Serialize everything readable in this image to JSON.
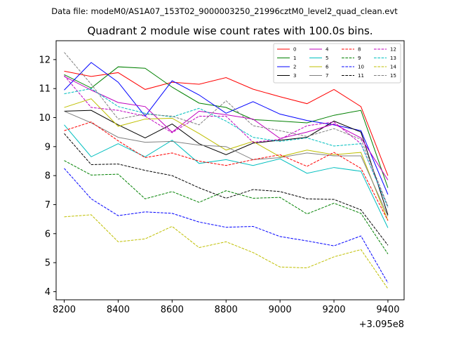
{
  "chart_data": {
    "type": "line",
    "suptitle": "Data file: modeM0/AS1A07_153T02_9000003250_21996cztM0_level2_quad_clean.evt",
    "title": "Quadrant 2 module wise count rates with 100.0s bins.",
    "xlabel": "",
    "ylabel": "",
    "x_offset_label": "+3.095e8",
    "xlim": [
      8170,
      9460
    ],
    "ylim": [
      3.72,
      12.65
    ],
    "xticks": [
      8200,
      8400,
      8600,
      8800,
      9000,
      9200,
      9400
    ],
    "yticks": [
      4,
      5,
      6,
      7,
      8,
      9,
      10,
      11,
      12
    ],
    "grid": false,
    "legend_position": "top-right",
    "x": [
      8200,
      8300,
      8400,
      8500,
      8600,
      8700,
      8800,
      8900,
      9000,
      9100,
      9200,
      9300,
      9400
    ],
    "series": [
      {
        "name": "0",
        "color": "#ff0000",
        "dash": false,
        "values": [
          11.6,
          11.42,
          11.55,
          10.97,
          11.22,
          11.15,
          11.38,
          10.98,
          10.72,
          10.48,
          10.97,
          10.38,
          8.0
        ]
      },
      {
        "name": "1",
        "color": "#008000",
        "dash": false,
        "values": [
          11.48,
          11.02,
          11.75,
          11.7,
          11.05,
          10.5,
          10.35,
          9.93,
          9.88,
          9.82,
          10.08,
          10.25,
          7.58
        ]
      },
      {
        "name": "2",
        "color": "#0000ff",
        "dash": false,
        "values": [
          10.95,
          11.9,
          11.22,
          10.05,
          11.27,
          10.78,
          10.15,
          10.55,
          10.12,
          9.9,
          9.75,
          9.55,
          7.35
        ]
      },
      {
        "name": "3",
        "color": "#000000",
        "dash": false,
        "values": [
          10.22,
          10.25,
          9.75,
          9.3,
          9.78,
          9.1,
          8.72,
          9.12,
          9.22,
          9.32,
          9.88,
          9.5,
          6.65
        ]
      },
      {
        "name": "4",
        "color": "#bf00bf",
        "dash": false,
        "values": [
          11.42,
          10.95,
          10.52,
          10.38,
          9.5,
          10.22,
          10.1,
          9.95,
          9.28,
          9.5,
          9.78,
          9.3,
          7.85
        ]
      },
      {
        "name": "5",
        "color": "#00bfbf",
        "dash": false,
        "values": [
          9.75,
          8.65,
          9.1,
          8.65,
          9.22,
          8.42,
          8.55,
          8.35,
          8.58,
          8.08,
          8.28,
          8.15,
          6.2
        ]
      },
      {
        "name": "6",
        "color": "#bfbf00",
        "dash": false,
        "values": [
          10.35,
          10.65,
          9.7,
          9.95,
          9.98,
          9.45,
          8.88,
          9.18,
          8.65,
          8.88,
          8.72,
          8.8,
          6.45
        ]
      },
      {
        "name": "7",
        "color": "#808080",
        "dash": false,
        "values": [
          10.22,
          9.82,
          9.32,
          9.15,
          9.18,
          9.05,
          9.0,
          8.55,
          8.62,
          8.78,
          8.68,
          8.68,
          6.6
        ]
      },
      {
        "name": "8",
        "color": "#ff0000",
        "dash": true,
        "values": [
          9.55,
          9.85,
          9.2,
          8.62,
          8.78,
          8.5,
          8.35,
          8.55,
          8.72,
          8.32,
          8.8,
          8.25,
          6.45
        ]
      },
      {
        "name": "9",
        "color": "#008000",
        "dash": true,
        "values": [
          8.52,
          8.02,
          8.05,
          7.2,
          7.45,
          7.08,
          7.48,
          7.22,
          7.25,
          6.68,
          7.05,
          6.7,
          5.3
        ]
      },
      {
        "name": "10",
        "color": "#0000ff",
        "dash": true,
        "values": [
          8.25,
          7.2,
          6.62,
          6.75,
          6.7,
          6.4,
          6.22,
          6.25,
          5.9,
          5.75,
          5.58,
          5.92,
          4.3
        ]
      },
      {
        "name": "11",
        "color": "#000000",
        "dash": true,
        "values": [
          9.45,
          8.38,
          8.4,
          8.18,
          8.0,
          7.58,
          7.22,
          7.52,
          7.45,
          7.2,
          7.18,
          6.82,
          5.6
        ]
      },
      {
        "name": "12",
        "color": "#bf00bf",
        "dash": true,
        "values": [
          11.45,
          10.35,
          10.25,
          10.05,
          9.48,
          10.05,
          10.05,
          9.15,
          9.25,
          9.72,
          9.85,
          9.1,
          6.92
        ]
      },
      {
        "name": "13",
        "color": "#00bfbf",
        "dash": true,
        "values": [
          10.82,
          11.0,
          10.38,
          10.15,
          10.02,
          10.32,
          9.88,
          9.32,
          9.18,
          9.3,
          9.02,
          9.1,
          6.9
        ]
      },
      {
        "name": "14",
        "color": "#bfbf00",
        "dash": true,
        "values": [
          6.58,
          6.65,
          5.72,
          5.82,
          6.25,
          5.52,
          5.72,
          5.35,
          4.85,
          4.82,
          5.2,
          5.45,
          4.1
        ]
      },
      {
        "name": "15",
        "color": "#808080",
        "dash": true,
        "values": [
          12.25,
          11.15,
          9.95,
          10.12,
          10.05,
          9.75,
          10.58,
          9.72,
          9.55,
          9.35,
          9.62,
          9.25,
          6.95
        ]
      }
    ]
  }
}
